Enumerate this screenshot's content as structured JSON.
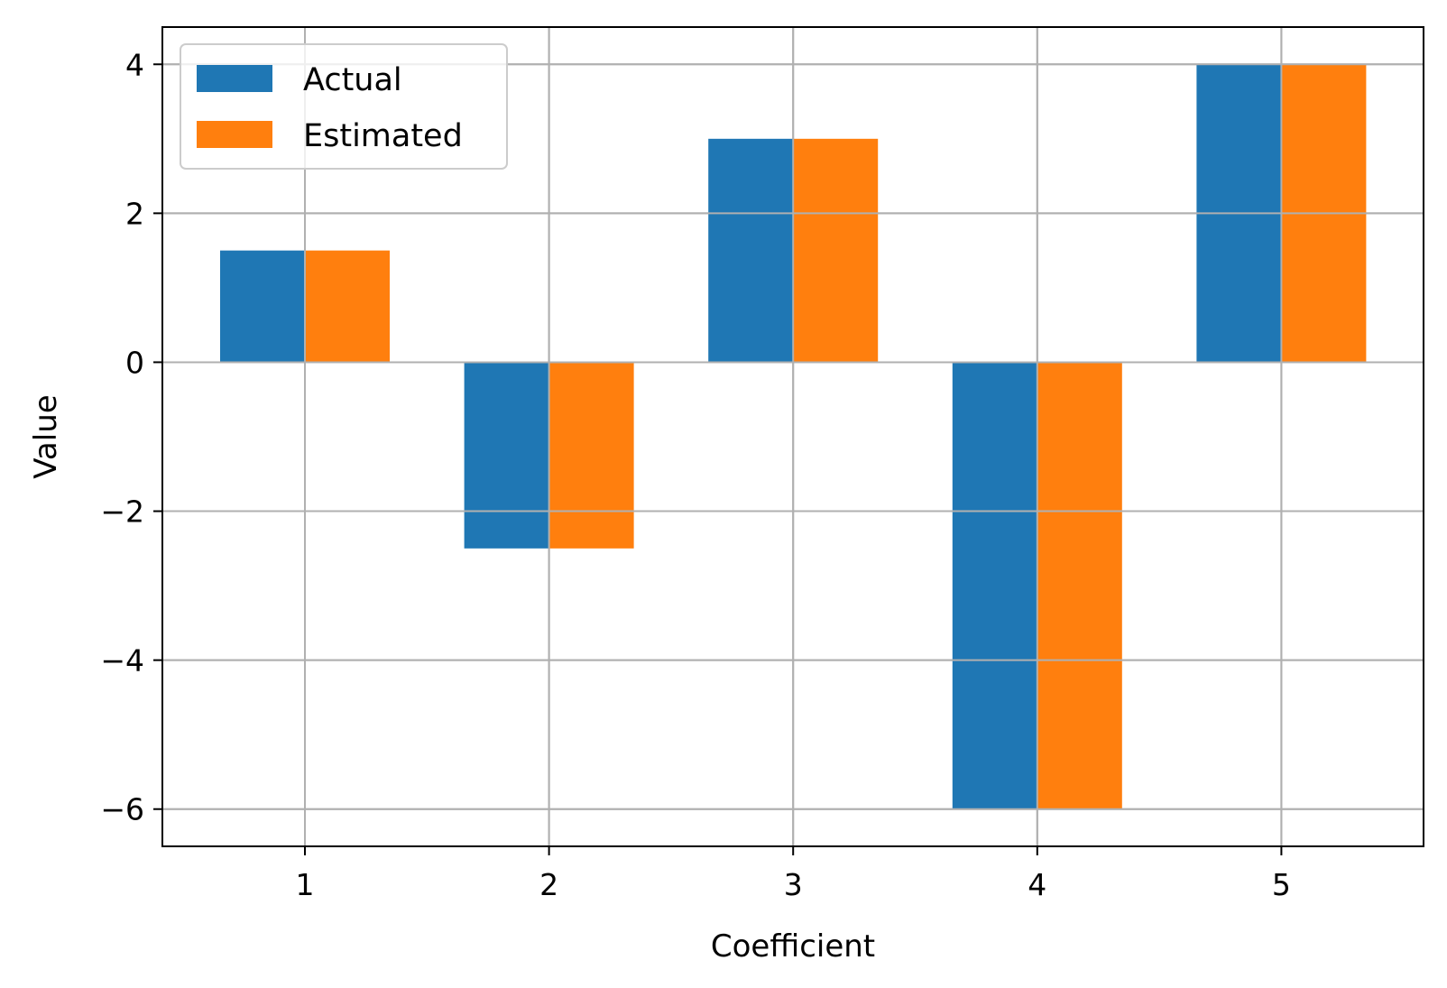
{
  "chart_data": {
    "type": "bar",
    "categories": [
      "1",
      "2",
      "3",
      "4",
      "5"
    ],
    "series": [
      {
        "name": "Actual",
        "values": [
          1.5,
          -2.5,
          3,
          -6,
          4
        ],
        "color": "#1f77b4"
      },
      {
        "name": "Estimated",
        "values": [
          1.5,
          -2.5,
          3,
          -6,
          4
        ],
        "color": "#ff7f0e"
      }
    ],
    "title": "",
    "xlabel": "Coefficient",
    "ylabel": "Value",
    "ylim": [
      -6.5,
      4.5
    ],
    "yticks": [
      4,
      2,
      0,
      -2,
      -4,
      -6
    ],
    "ytick_labels": [
      "4",
      "2",
      "0",
      "−2",
      "−4",
      "−6"
    ],
    "grid": true,
    "legend_position": "top-left"
  }
}
